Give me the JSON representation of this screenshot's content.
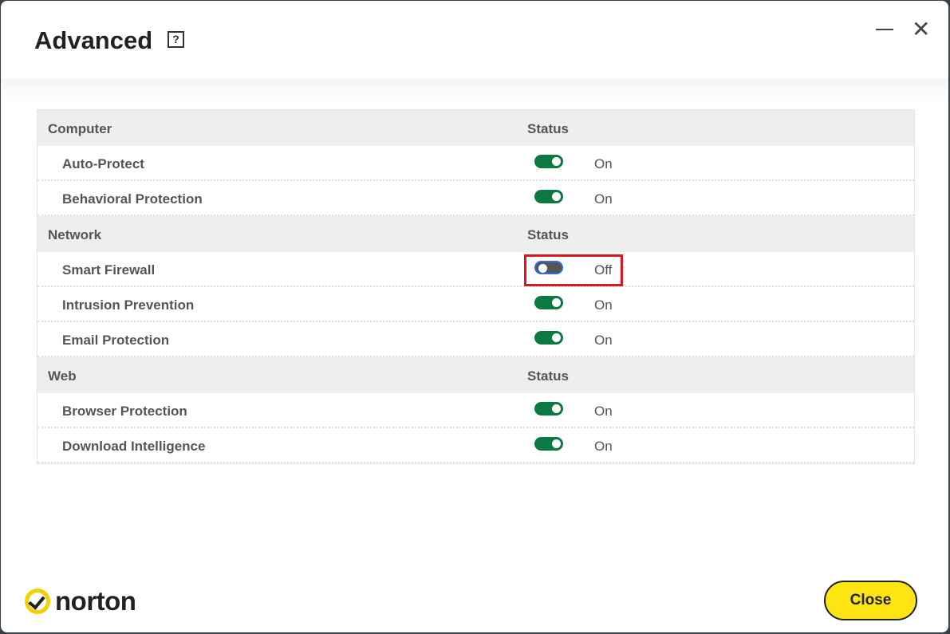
{
  "header": {
    "title": "Advanced",
    "help": "?"
  },
  "sections": [
    {
      "label": "Computer",
      "status_label": "Status",
      "items": [
        {
          "label": "Auto-Protect",
          "on": true,
          "status": "On"
        },
        {
          "label": "Behavioral Protection",
          "on": true,
          "status": "On"
        }
      ]
    },
    {
      "label": "Network",
      "status_label": "Status",
      "items": [
        {
          "label": "Smart Firewall",
          "on": false,
          "status": "Off"
        },
        {
          "label": "Intrusion Prevention",
          "on": true,
          "status": "On"
        },
        {
          "label": "Email Protection",
          "on": true,
          "status": "On"
        }
      ]
    },
    {
      "label": "Web",
      "status_label": "Status",
      "items": [
        {
          "label": "Browser Protection",
          "on": true,
          "status": "On"
        },
        {
          "label": "Download Intelligence",
          "on": true,
          "status": "On"
        }
      ]
    }
  ],
  "footer": {
    "brand": "norton",
    "close_label": "Close"
  },
  "colors": {
    "toggle_on": "#0a7a42",
    "toggle_off": "#555555",
    "accent": "#ffe414",
    "highlight": "#e0141e"
  }
}
